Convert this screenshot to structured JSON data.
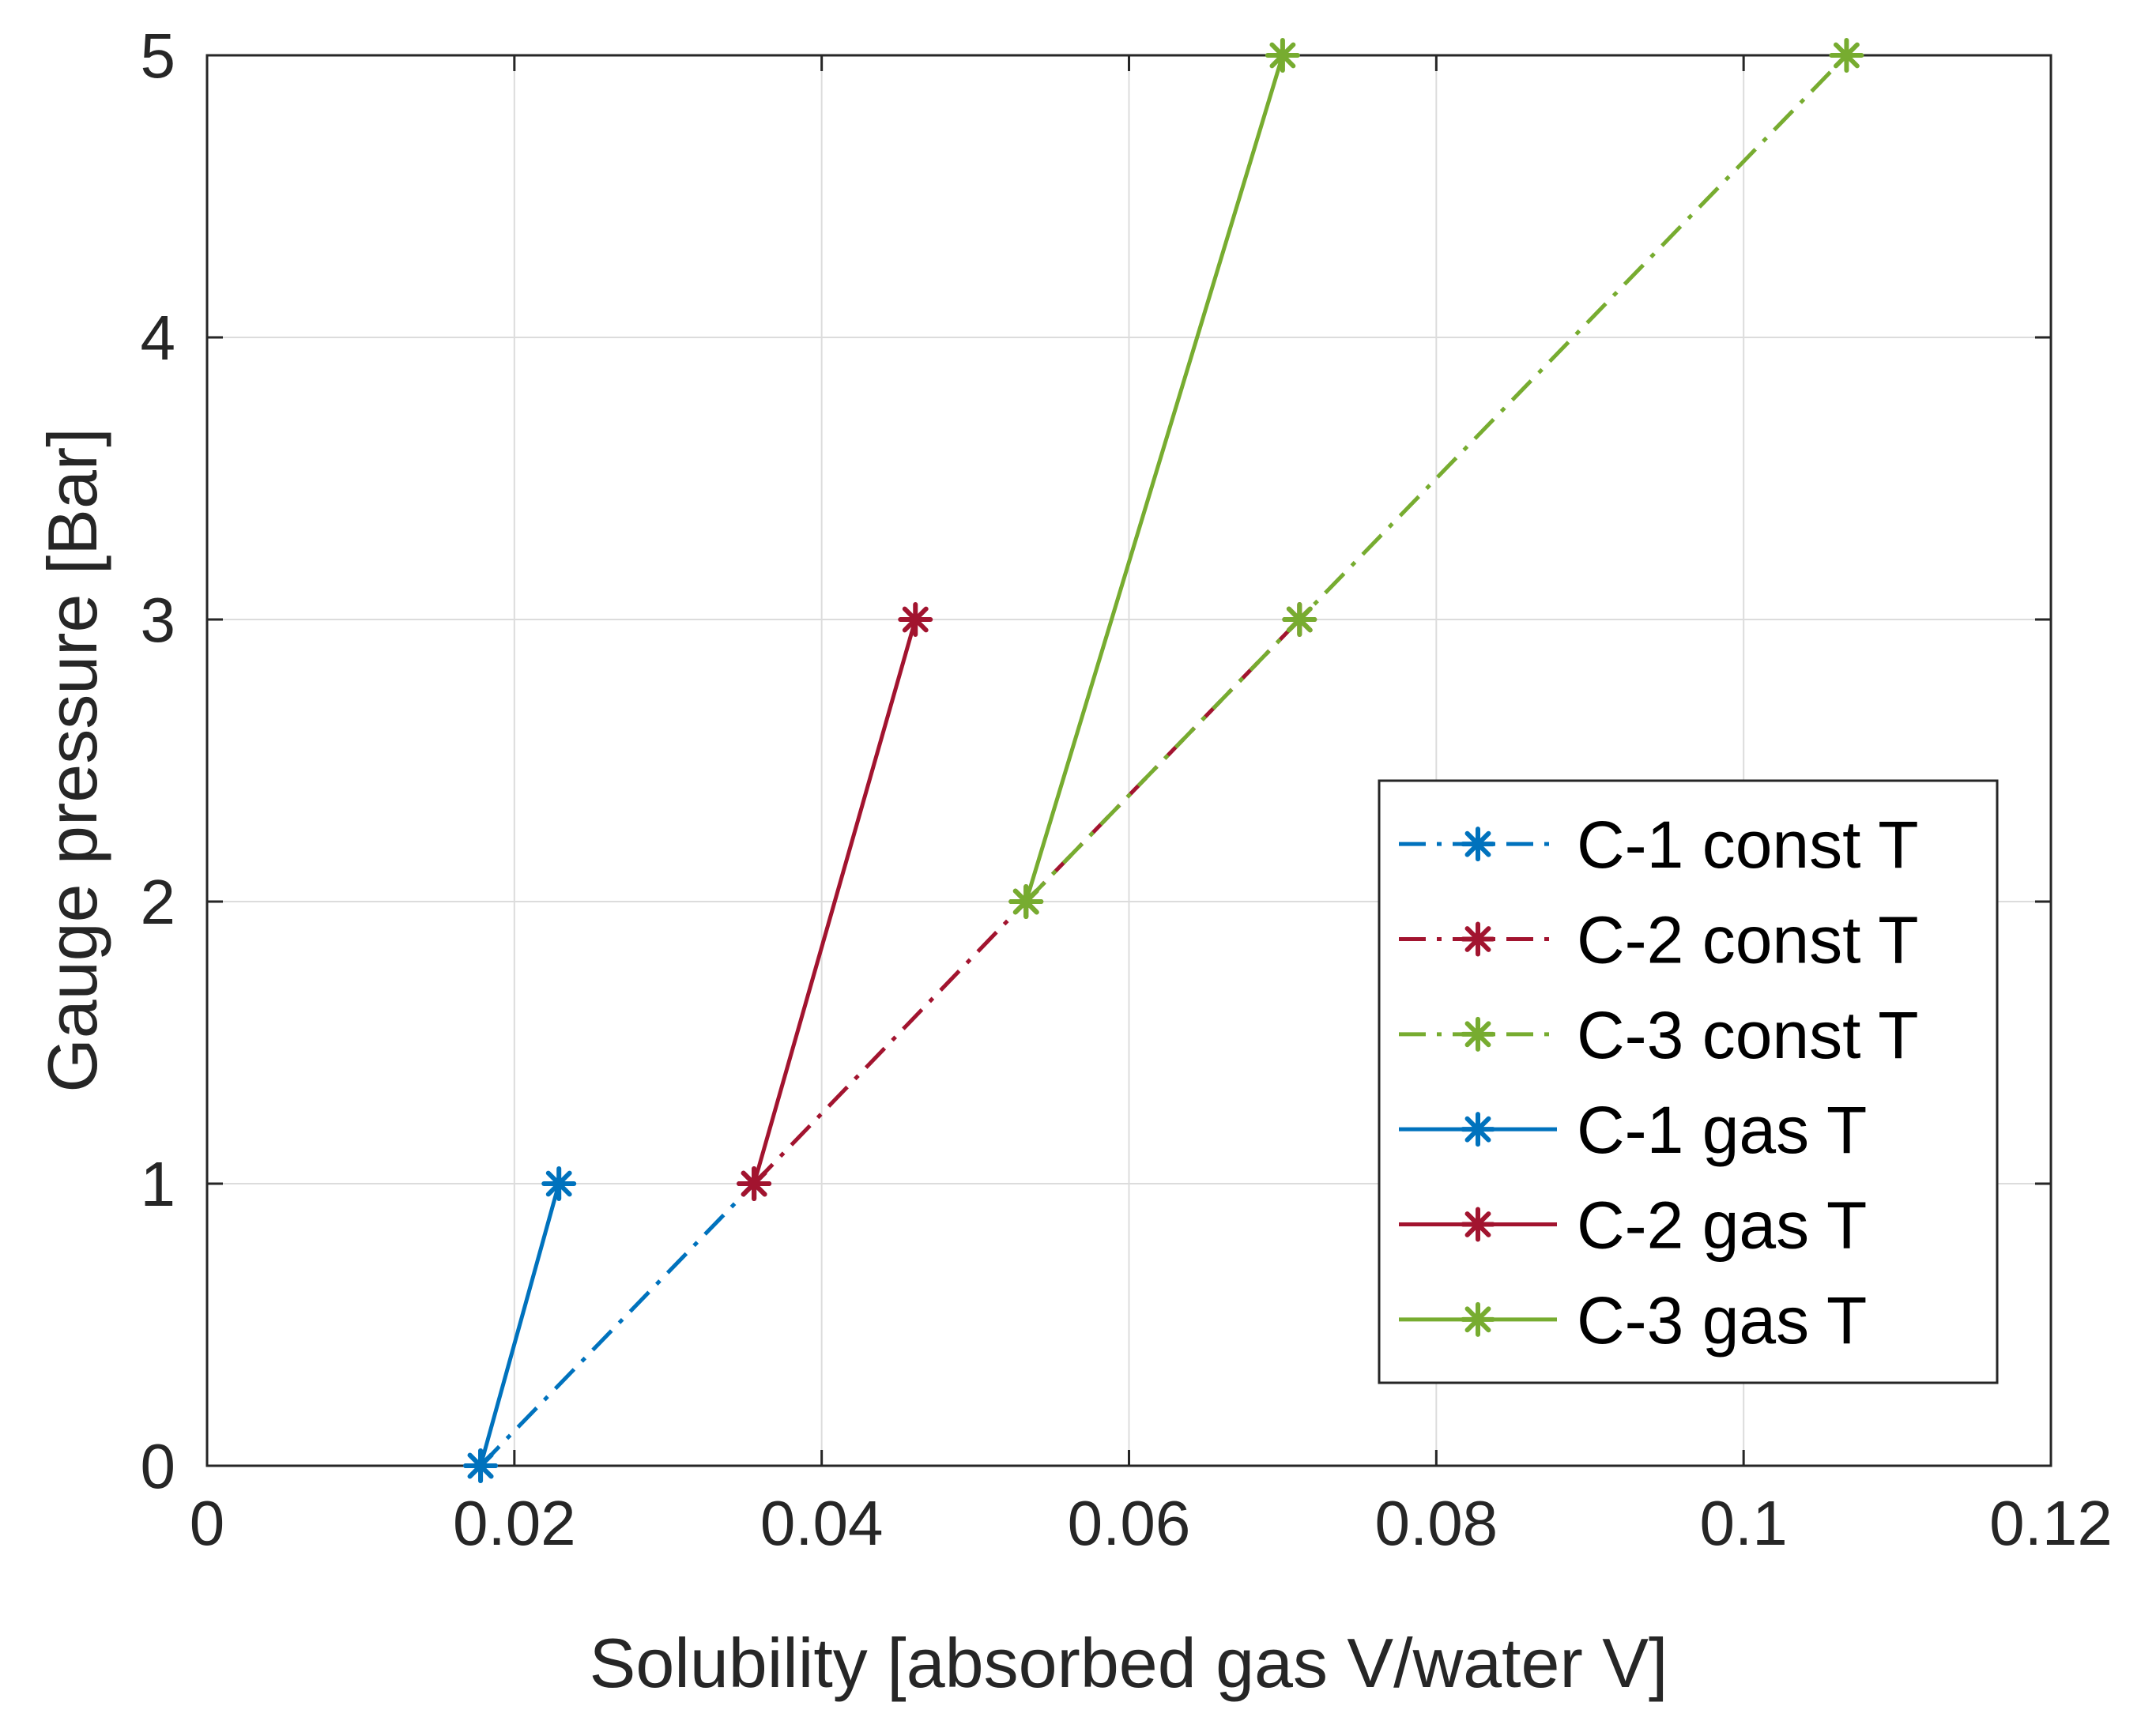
{
  "chart_data": {
    "type": "line",
    "title": "",
    "xlabel": "Solubility [absorbed gas V/water V]",
    "ylabel": "Gauge pressure [Bar]",
    "xlim": [
      0,
      0.12
    ],
    "ylim": [
      0,
      5
    ],
    "grid": true,
    "legend_position": "bottom-right",
    "x_ticks": [
      {
        "value": 0,
        "label": "0"
      },
      {
        "value": 0.02,
        "label": "0.02"
      },
      {
        "value": 0.04,
        "label": "0.04"
      },
      {
        "value": 0.06,
        "label": "0.06"
      },
      {
        "value": 0.08,
        "label": "0.08"
      },
      {
        "value": 0.1,
        "label": "0.1"
      },
      {
        "value": 0.12,
        "label": "0.12"
      }
    ],
    "y_ticks": [
      {
        "value": 0,
        "label": "0"
      },
      {
        "value": 1,
        "label": "1"
      },
      {
        "value": 2,
        "label": "2"
      },
      {
        "value": 3,
        "label": "3"
      },
      {
        "value": 4,
        "label": "4"
      },
      {
        "value": 5,
        "label": "5"
      }
    ],
    "series": [
      {
        "name": "C-1 const T",
        "color": "#0072BD",
        "line_style": "dashdot",
        "marker": "asterisk",
        "points": [
          {
            "x": 0.0178,
            "y": 0
          },
          {
            "x": 0.0356,
            "y": 1
          }
        ]
      },
      {
        "name": "C-2 const T",
        "color": "#A2142F",
        "line_style": "dashdot",
        "marker": "asterisk",
        "points": [
          {
            "x": 0.0356,
            "y": 1
          },
          {
            "x": 0.0533,
            "y": 2
          },
          {
            "x": 0.0711,
            "y": 3
          }
        ]
      },
      {
        "name": "C-3 const T",
        "color": "#77AC30",
        "line_style": "dashdot",
        "marker": "asterisk",
        "points": [
          {
            "x": 0.0533,
            "y": 2
          },
          {
            "x": 0.0711,
            "y": 3
          },
          {
            "x": 0.1067,
            "y": 5
          }
        ]
      },
      {
        "name": "C-1 gas T",
        "color": "#0072BD",
        "line_style": "solid",
        "marker": "asterisk",
        "points": [
          {
            "x": 0.0178,
            "y": 0
          },
          {
            "x": 0.0229,
            "y": 1
          }
        ]
      },
      {
        "name": "C-2 gas T",
        "color": "#A2142F",
        "line_style": "solid",
        "marker": "asterisk",
        "points": [
          {
            "x": 0.0356,
            "y": 1
          },
          {
            "x": 0.0461,
            "y": 3
          }
        ]
      },
      {
        "name": "C-3 gas T",
        "color": "#77AC30",
        "line_style": "solid",
        "marker": "asterisk",
        "points": [
          {
            "x": 0.0533,
            "y": 2
          },
          {
            "x": 0.07,
            "y": 5
          }
        ]
      }
    ]
  }
}
